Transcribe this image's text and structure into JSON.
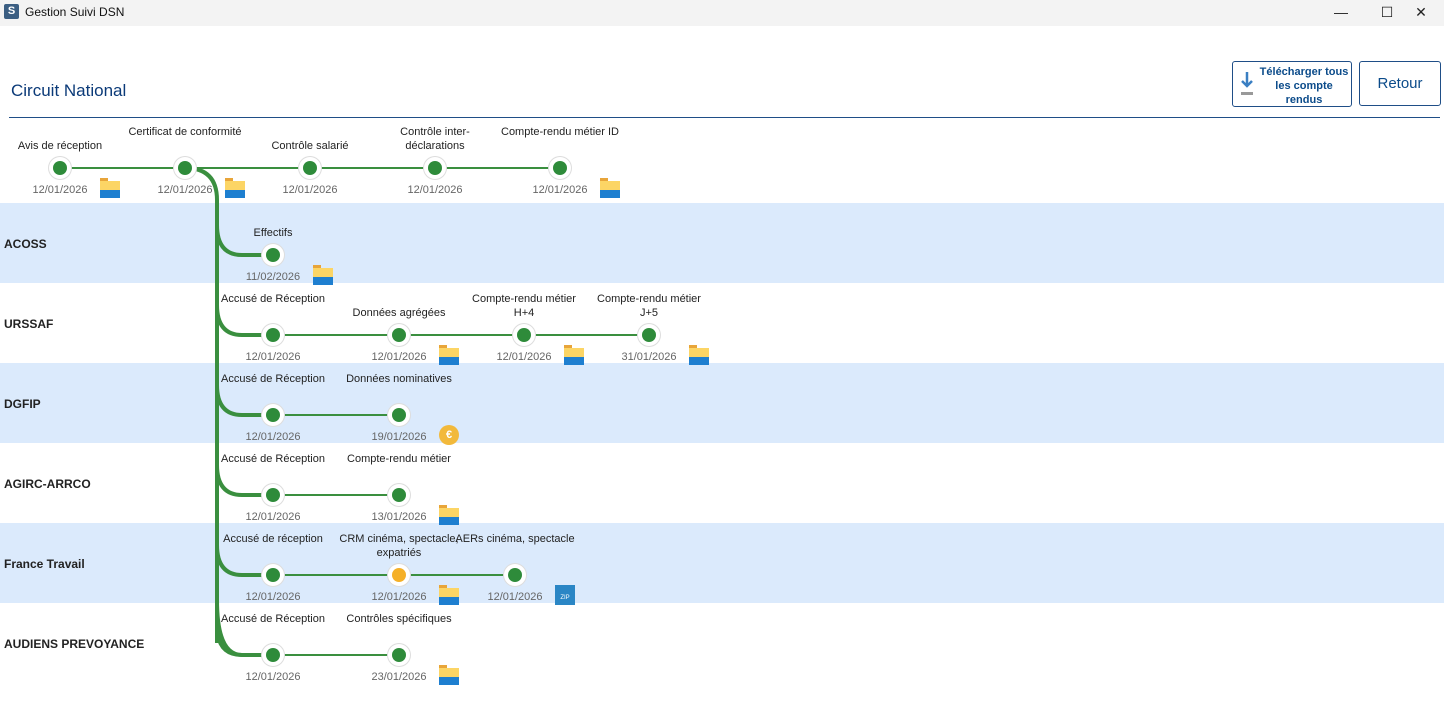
{
  "window": {
    "title": "Gestion Suivi DSN",
    "app_icon_letter": "S",
    "minimize": "—",
    "maximize": "☐",
    "close": "✕"
  },
  "header": {
    "title": "Circuit National",
    "download_label": "Télécharger tous les compte rendus",
    "back_label": "Retour"
  },
  "colors": {
    "ok": "#2e8b3a",
    "warning": "#f5b027",
    "band": "#dbeafc",
    "accent": "#0b3a78"
  },
  "national": [
    {
      "label": "Avis de réception",
      "date": "12/01/2026",
      "status": "ok",
      "icon": "folder-icon"
    },
    {
      "label": "Certificat de conformité",
      "date": "12/01/2026",
      "status": "ok",
      "icon": "folder-icon"
    },
    {
      "label": "Contrôle salarié",
      "date": "12/01/2026",
      "status": "ok",
      "icon": null
    },
    {
      "label": "Contrôle inter-déclarations",
      "date": "12/01/2026",
      "status": "ok",
      "icon": null
    },
    {
      "label": "Compte-rendu métier ID",
      "date": "12/01/2026",
      "status": "ok",
      "icon": "folder-icon"
    }
  ],
  "organisms": [
    {
      "name": "ACOSS",
      "steps": [
        {
          "label": "Effectifs",
          "date": "11/02/2026",
          "status": "ok",
          "icon": "folder-icon"
        }
      ]
    },
    {
      "name": "URSSAF",
      "steps": [
        {
          "label": "Accusé de Réception",
          "date": "12/01/2026",
          "status": "ok",
          "icon": null
        },
        {
          "label": "Données agrégées",
          "date": "12/01/2026",
          "status": "ok",
          "icon": "folder-icon"
        },
        {
          "label": "Compte-rendu métier H+4",
          "date": "12/01/2026",
          "status": "ok",
          "icon": "folder-icon"
        },
        {
          "label": "Compte-rendu métier J+5",
          "date": "31/01/2026",
          "status": "ok",
          "icon": "folder-icon"
        }
      ]
    },
    {
      "name": "DGFIP",
      "steps": [
        {
          "label": "Accusé de Réception",
          "date": "12/01/2026",
          "status": "ok",
          "icon": null
        },
        {
          "label": "Données nominatives",
          "date": "19/01/2026",
          "status": "ok",
          "icon": "coin-icon"
        }
      ]
    },
    {
      "name": "AGIRC-ARRCO",
      "steps": [
        {
          "label": "Accusé de Réception",
          "date": "12/01/2026",
          "status": "ok",
          "icon": null
        },
        {
          "label": "Compte-rendu métier",
          "date": "13/01/2026",
          "status": "ok",
          "icon": "folder-icon"
        }
      ]
    },
    {
      "name": "France Travail",
      "steps": [
        {
          "label": "Accusé de réception",
          "date": "12/01/2026",
          "status": "ok",
          "icon": null
        },
        {
          "label": "CRM cinéma, spectacle, expatriés",
          "date": "12/01/2026",
          "status": "warning",
          "icon": "folder-icon"
        },
        {
          "label": "AERs cinéma, spectacle",
          "date": "12/01/2026",
          "status": "ok",
          "icon": "zip-icon"
        }
      ]
    },
    {
      "name": "AUDIENS PREVOYANCE",
      "steps": [
        {
          "label": "Accusé de Réception",
          "date": "12/01/2026",
          "status": "ok",
          "icon": null
        },
        {
          "label": "Contrôles spécifiques",
          "date": "23/01/2026",
          "status": "ok",
          "icon": "folder-icon"
        }
      ]
    }
  ]
}
